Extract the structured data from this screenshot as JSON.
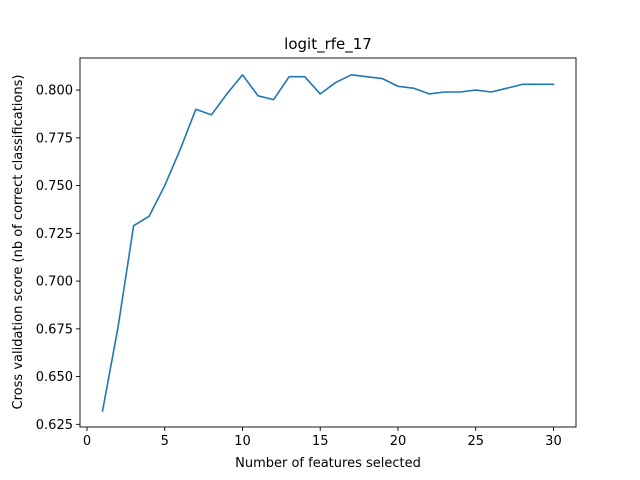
{
  "chart_data": {
    "type": "line",
    "title": "logit_rfe_17",
    "xlabel": "Number of features selected",
    "ylabel": "Cross validation score (nb of correct classifications)",
    "xlim": [
      -0.45,
      31.45
    ],
    "ylim": [
      0.6236,
      0.8168
    ],
    "xticks": [
      0,
      5,
      10,
      15,
      20,
      25,
      30
    ],
    "yticks": [
      0.625,
      0.65,
      0.675,
      0.7,
      0.725,
      0.75,
      0.775,
      0.8
    ],
    "xtick_labels": [
      "0",
      "5",
      "10",
      "15",
      "20",
      "25",
      "30"
    ],
    "ytick_labels": [
      "0.625",
      "0.650",
      "0.675",
      "0.700",
      "0.725",
      "0.750",
      "0.775",
      "0.800"
    ],
    "grid": false,
    "series": [
      {
        "color": "#1f77b4",
        "x": [
          1,
          2,
          3,
          4,
          5,
          6,
          7,
          8,
          9,
          10,
          11,
          12,
          13,
          14,
          15,
          16,
          17,
          18,
          19,
          20,
          21,
          22,
          23,
          24,
          25,
          26,
          27,
          28,
          29,
          30
        ],
        "y": [
          0.632,
          0.676,
          0.729,
          0.734,
          0.75,
          0.769,
          0.79,
          0.787,
          0.798,
          0.808,
          0.797,
          0.795,
          0.807,
          0.807,
          0.798,
          0.804,
          0.808,
          0.807,
          0.806,
          0.802,
          0.801,
          0.798,
          0.799,
          0.799,
          0.8,
          0.799,
          0.801,
          0.803,
          0.803,
          0.803
        ]
      }
    ]
  }
}
